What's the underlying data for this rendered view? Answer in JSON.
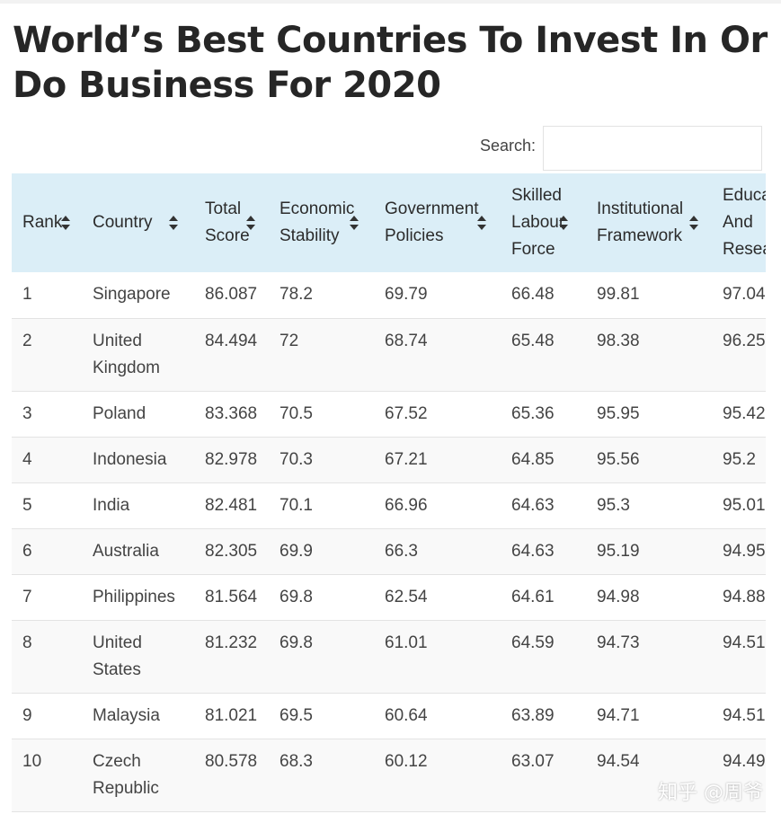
{
  "title": "World’s Best Countries To Invest In Or Do Business For 2020",
  "search": {
    "label": "Search:",
    "value": "",
    "placeholder": ""
  },
  "columns": [
    {
      "label": "Rank",
      "sortable": true
    },
    {
      "label": "Country",
      "sortable": true
    },
    {
      "label": "Total Score",
      "sortable": true
    },
    {
      "label": "Economic Stability",
      "sortable": true
    },
    {
      "label": "Government Policies",
      "sortable": true
    },
    {
      "label": "Skilled Labour Force",
      "sortable": true
    },
    {
      "label": "Institutional Framework",
      "sortable": true
    },
    {
      "label": "Education And Research",
      "sortable": true
    }
  ],
  "rows": [
    [
      "1",
      "Singapore",
      "86.087",
      "78.2",
      "69.79",
      "66.48",
      "99.81",
      "97.04"
    ],
    [
      "2",
      "United Kingdom",
      "84.494",
      "72",
      "68.74",
      "65.48",
      "98.38",
      "96.25"
    ],
    [
      "3",
      "Poland",
      "83.368",
      "70.5",
      "67.52",
      "65.36",
      "95.95",
      "95.42"
    ],
    [
      "4",
      "Indonesia",
      "82.978",
      "70.3",
      "67.21",
      "64.85",
      "95.56",
      "95.2"
    ],
    [
      "5",
      "India",
      "82.481",
      "70.1",
      "66.96",
      "64.63",
      "95.3",
      "95.01"
    ],
    [
      "6",
      "Australia",
      "82.305",
      "69.9",
      "66.3",
      "64.63",
      "95.19",
      "94.95"
    ],
    [
      "7",
      "Philippines",
      "81.564",
      "69.8",
      "62.54",
      "64.61",
      "94.98",
      "94.88"
    ],
    [
      "8",
      "United States",
      "81.232",
      "69.8",
      "61.01",
      "64.59",
      "94.73",
      "94.51"
    ],
    [
      "9",
      "Malaysia",
      "81.021",
      "69.5",
      "60.64",
      "63.89",
      "94.71",
      "94.51"
    ],
    [
      "10",
      "Czech Republic",
      "80.578",
      "68.3",
      "60.12",
      "63.07",
      "94.54",
      "94.49"
    ]
  ],
  "watermark": "知乎 @周爷",
  "colors": {
    "header_bg": "#dbeef7",
    "row_alt_bg": "#f9f9f9",
    "border": "#e3e3e3",
    "title": "#262626"
  }
}
